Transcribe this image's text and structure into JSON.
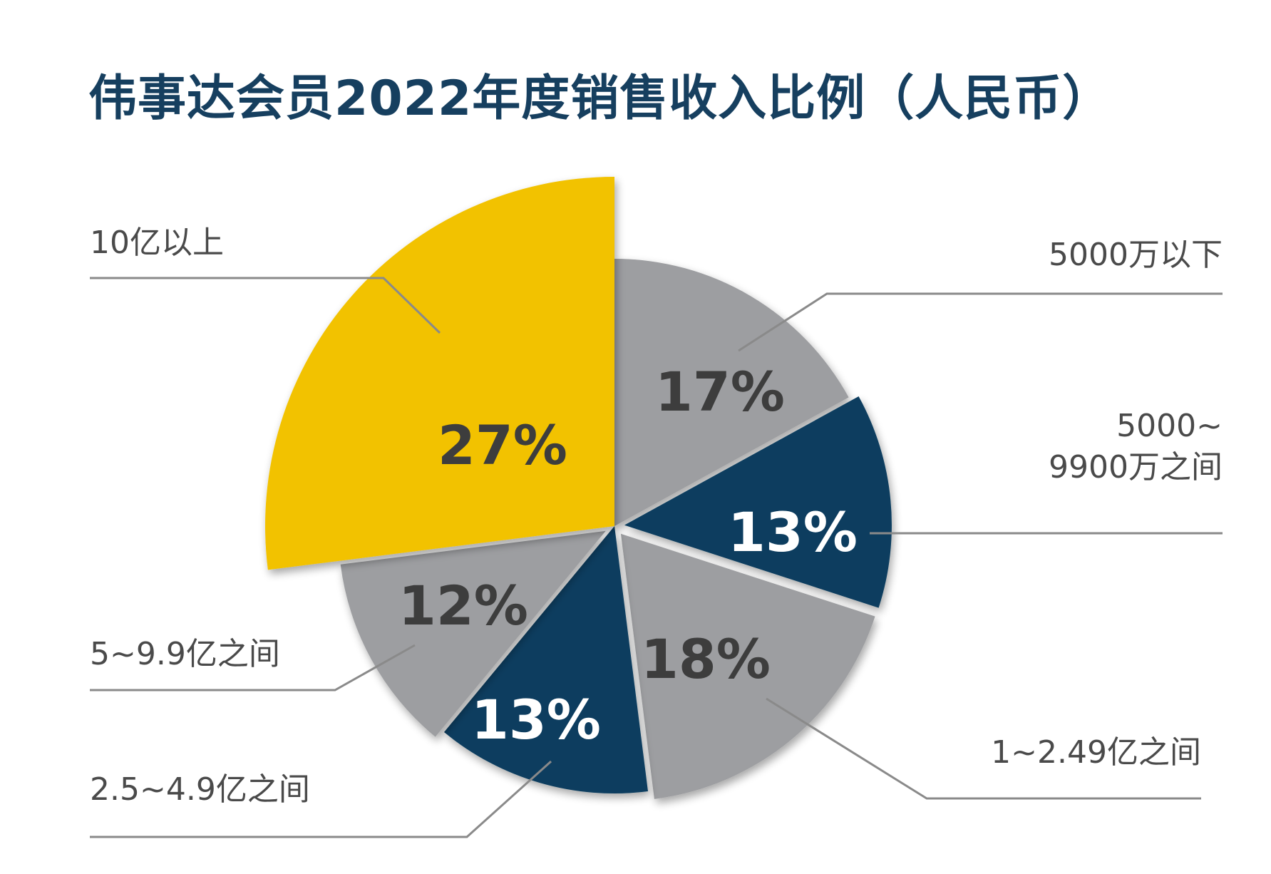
{
  "title": "伟事达会员2022年度销售收入比例（人民币）",
  "colors": {
    "gray": "#9d9ea1",
    "navy": "#083e5f",
    "yellow": "#f2c201",
    "title": "#163f5f",
    "pct_dark": "#3d3d3d",
    "pct_light": "#ffffff",
    "label": "#4a4a4a",
    "leader": "#8a8a8a"
  },
  "chart_data": {
    "type": "pie",
    "title": "伟事达会员2022年度销售收入比例（人民币）",
    "slices": [
      {
        "label": "5000万以下",
        "label_lines": [
          "5000万以下"
        ],
        "value": 17,
        "value_label": "17%",
        "color": "#9d9ea1",
        "pct_color": "#3d3d3d",
        "exploded": false
      },
      {
        "label": "5000~9900万之间",
        "label_lines": [
          "5000~",
          "9900万之间"
        ],
        "value": 13,
        "value_label": "13%",
        "color": "#083e5f",
        "pct_color": "#ffffff",
        "exploded": true
      },
      {
        "label": "1~2.49亿之间",
        "label_lines": [
          "1~2.49亿之间"
        ],
        "value": 18,
        "value_label": "18%",
        "color": "#9d9ea1",
        "pct_color": "#3d3d3d",
        "exploded": true
      },
      {
        "label": "2.5~4.9亿之间",
        "label_lines": [
          "2.5~4.9亿之间"
        ],
        "value": 13,
        "value_label": "13%",
        "color": "#083e5f",
        "pct_color": "#ffffff",
        "exploded": false
      },
      {
        "label": "5~9.9亿之间",
        "label_lines": [
          "5~9.9亿之间"
        ],
        "value": 12,
        "value_label": "12%",
        "color": "#9d9ea1",
        "pct_color": "#3d3d3d",
        "exploded": true
      },
      {
        "label": "10亿以上",
        "label_lines": [
          "10亿以上"
        ],
        "value": 27,
        "value_label": "27%",
        "color": "#f2c201",
        "pct_color": "#3d3d3d",
        "exploded": true
      }
    ],
    "legend": "none"
  }
}
